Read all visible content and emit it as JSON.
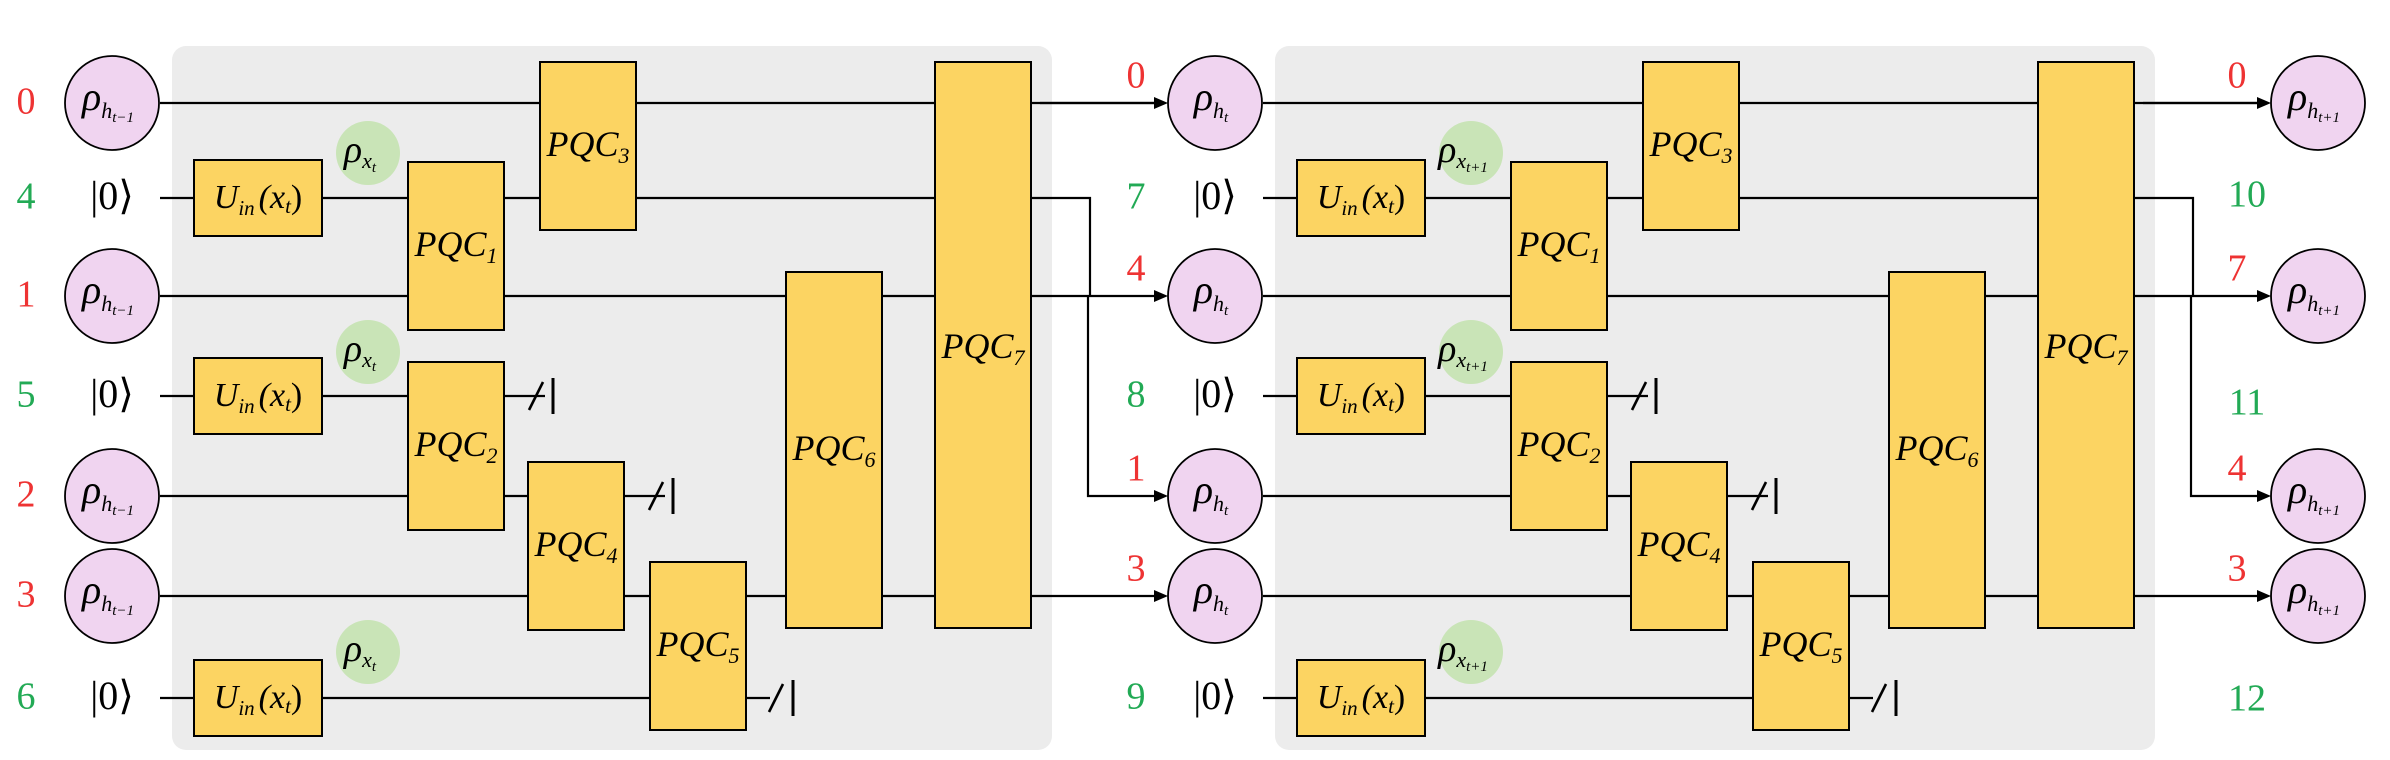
{
  "colors": {
    "panel": "#ececec",
    "gate": "#fcd462",
    "hidden_state": "#f0d4f0",
    "input_state": "#c9e4b7",
    "qubit_red": "#ee3333",
    "qubit_green": "#22aa55"
  },
  "left_labels": [
    "0",
    "4",
    "1",
    "5",
    "2",
    "3",
    "6"
  ],
  "mid_labels_red": [
    "0",
    "4",
    "1",
    "3"
  ],
  "mid_labels_green": [
    "7",
    "8",
    "9"
  ],
  "right_labels_red": [
    "0",
    "7",
    "4",
    "3"
  ],
  "right_labels_green": [
    "10",
    "11",
    "12"
  ],
  "ket": "|0⟩",
  "states": {
    "rho": "ρ",
    "h_prev_sub": "h",
    "h_prev_subsub": "t−1",
    "h_cur_subsub": "t",
    "h_next_subsub": "t+1",
    "x_sub": "x",
    "x_cur_subsub": "t",
    "x_next_subsub": "t+1"
  },
  "uin": {
    "U": "U",
    "in": "in",
    "arg": "(x",
    "argsub": "t",
    "close": ")"
  },
  "pqc": {
    "base": "PQC",
    "subs": [
      "1",
      "2",
      "3",
      "4",
      "5",
      "6",
      "7"
    ]
  }
}
